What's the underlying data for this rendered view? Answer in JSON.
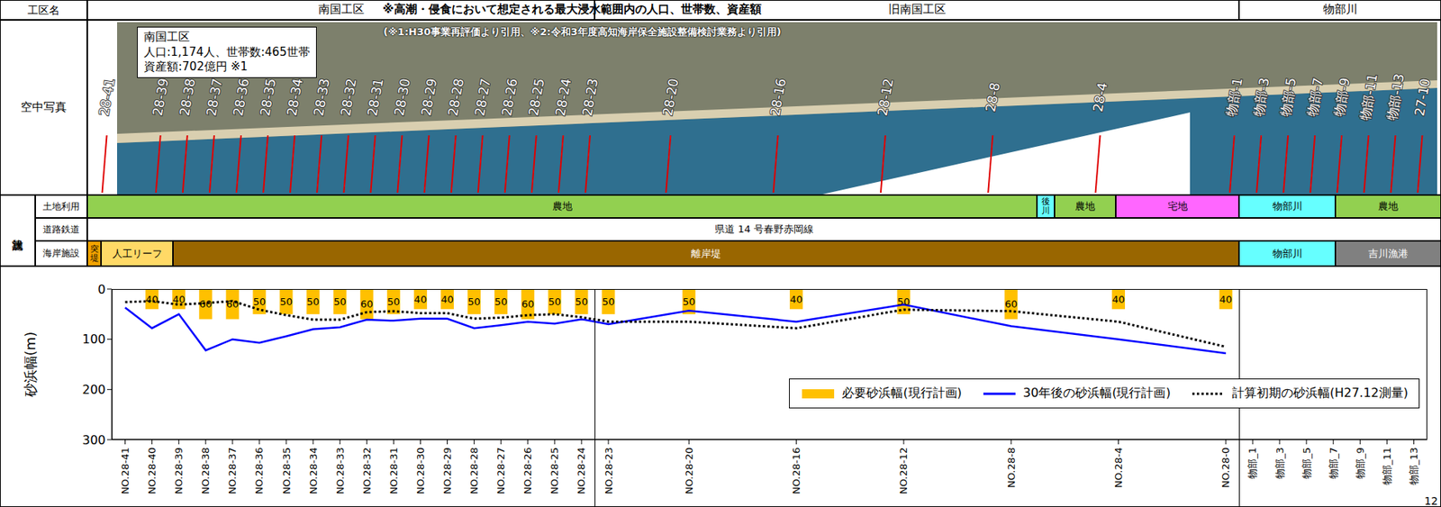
{
  "header": {
    "label": "工区名",
    "title": "※高潮・侵食において想定される最大浸水範囲内の人口、世帯数、資産額",
    "sources": "(※1:H30事業再評価より引用、※2:令和3年度高知海岸保全施設整備検討業務より引用)",
    "sections": [
      {
        "name": "南国工区",
        "last": "NO.28-24"
      },
      {
        "name": "旧南国工区",
        "last": "NO.28-0"
      },
      {
        "name": "物部川",
        "last": "物部_13"
      }
    ]
  },
  "photo": {
    "label": "空中写真",
    "info": [
      "南国工区",
      "人口:1,174人、世帯数:465世帯",
      "資産額:702億円 ※1"
    ],
    "survey_lines": [
      "28-41",
      "28-39",
      "28-38",
      "28-37",
      "28-36",
      "28-35",
      "28-34",
      "28-33",
      "28-32",
      "28-31",
      "28-30",
      "28-29",
      "28-28",
      "28-27",
      "28-26",
      "28-25",
      "28-24",
      "28-23",
      "28-20",
      "28-16",
      "28-12",
      "28-8",
      "28-4",
      "物部-1",
      "物部-3",
      "物部-5",
      "物部-7",
      "物部-9",
      "物部-11",
      "物部-13",
      "27-10"
    ]
  },
  "facilities": {
    "label": "施設状況",
    "rows": [
      {
        "label": "土地利用",
        "segments": [
          {
            "text": "農地",
            "color": "#92d050"
          },
          {
            "text": "後川",
            "color": "#66ffff"
          },
          {
            "text": "農地",
            "color": "#92d050"
          },
          {
            "text": "宅地",
            "color": "#ff66ff"
          },
          {
            "text": "物部川",
            "color": "#66ffff"
          },
          {
            "text": "農地",
            "color": "#92d050"
          }
        ]
      },
      {
        "label": "道路鉄道",
        "segments": [
          {
            "text": "県道 14 号春野赤岡線",
            "color": "#ffffff"
          }
        ]
      },
      {
        "label": "海岸施設",
        "segments": [
          {
            "text": "突堤",
            "color": "#f4a300"
          },
          {
            "text": "人工リーフ",
            "color": "#ffd966"
          },
          {
            "text": "離岸堤",
            "color": "#996600"
          },
          {
            "text": "物部川",
            "color": "#66ffff"
          },
          {
            "text": "吉川漁港",
            "color": "#808080"
          }
        ]
      }
    ]
  },
  "chart_data": {
    "type": "combo",
    "y_label": "砂浜幅(m)",
    "categories": [
      "NO.28-41",
      "NO.28-40",
      "NO.28-39",
      "NO.28-38",
      "NO.28-37",
      "NO.28-36",
      "NO.28-35",
      "NO.28-34",
      "NO.28-33",
      "NO.28-32",
      "NO.28-31",
      "NO.28-30",
      "NO.28-29",
      "NO.28-28",
      "NO.28-27",
      "NO.28-26",
      "NO.28-25",
      "NO.28-24",
      "NO.28-23",
      null,
      null,
      "NO.28-20",
      null,
      null,
      null,
      "NO.28-16",
      null,
      null,
      null,
      "NO.28-12",
      null,
      null,
      null,
      "NO.28-8",
      null,
      null,
      null,
      "NO.28-4",
      null,
      null,
      null,
      "NO.28-0",
      "物部_1",
      "物部_3",
      "物部_5",
      "物部_7",
      "物部_9",
      "物部_11",
      "物部_13"
    ],
    "ylim": [
      300,
      0
    ],
    "yticks": [
      0,
      100,
      200,
      300
    ],
    "grid": false,
    "legend": "lower right",
    "series": [
      {
        "name": "必要砂浜幅(現行計画)",
        "type": "bar",
        "color": "#ffc000",
        "data_labels": true,
        "values": [
          null,
          40,
          40,
          60,
          60,
          50,
          50,
          50,
          50,
          60,
          50,
          40,
          40,
          50,
          50,
          60,
          50,
          50,
          50,
          null,
          null,
          50,
          null,
          null,
          null,
          40,
          null,
          null,
          null,
          50,
          null,
          null,
          null,
          60,
          null,
          null,
          null,
          40,
          null,
          null,
          null,
          40,
          null,
          null,
          null,
          null,
          null,
          null,
          null
        ]
      },
      {
        "name": "30年後の砂浜幅(現行計画)",
        "type": "line",
        "color": "#0000ff",
        "line_style": "solid",
        "values": [
          37,
          78,
          50,
          122,
          100,
          107,
          94,
          80,
          76,
          61,
          63,
          59,
          59,
          78,
          72,
          65,
          69,
          60,
          70,
          null,
          null,
          43,
          null,
          null,
          null,
          65,
          null,
          null,
          null,
          31,
          null,
          null,
          null,
          74,
          null,
          null,
          null,
          100,
          null,
          null,
          null,
          128,
          null,
          null,
          null,
          null,
          null,
          null,
          null
        ]
      },
      {
        "name": "計算初期の砂浜幅(H27.12測量)",
        "type": "line",
        "color": "#000000",
        "line_style": "dotted",
        "values": [
          26,
          24,
          31,
          28,
          24,
          41,
          52,
          61,
          61,
          46,
          44,
          48,
          48,
          59,
          57,
          52,
          50,
          56,
          65,
          null,
          null,
          65,
          null,
          null,
          null,
          78,
          null,
          null,
          null,
          41,
          null,
          null,
          null,
          44,
          null,
          null,
          null,
          65,
          null,
          null,
          null,
          115,
          null,
          null,
          null,
          null,
          null,
          null,
          null
        ]
      }
    ]
  },
  "page": "12"
}
